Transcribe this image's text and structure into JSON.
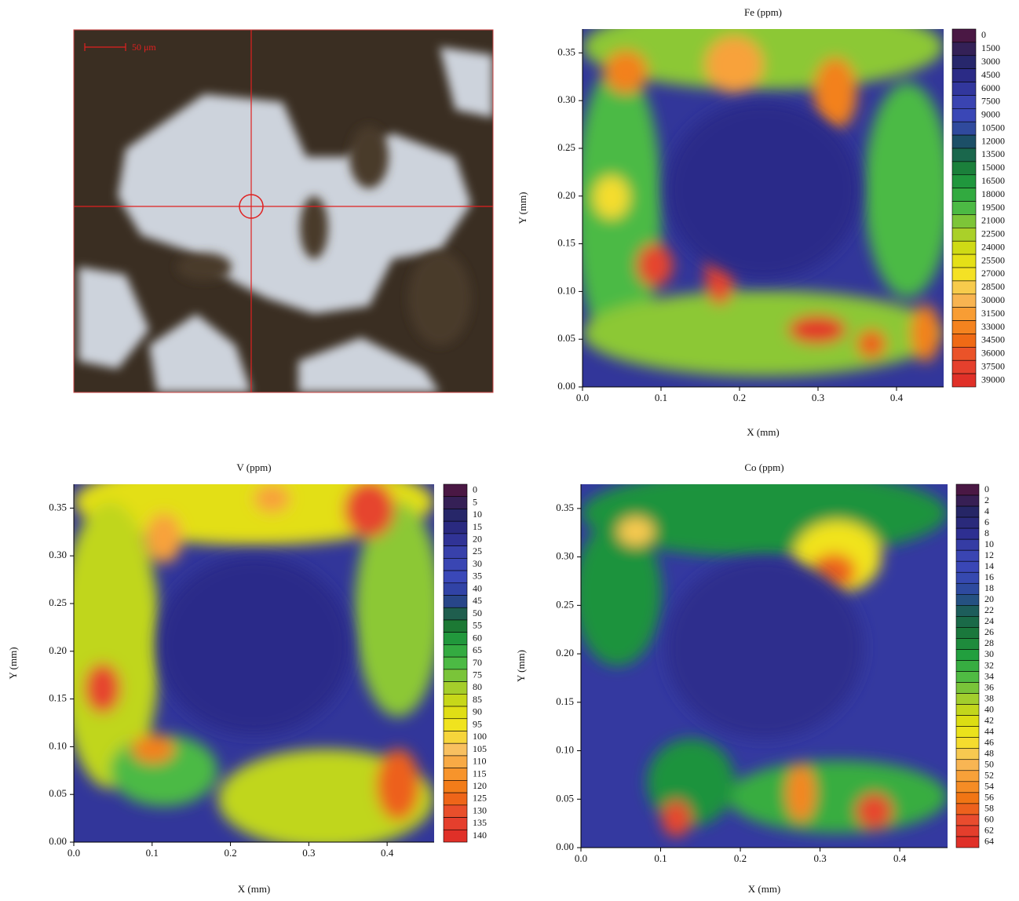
{
  "micrograph": {
    "scale_label": "50 μm"
  },
  "chart_data": [
    {
      "type": "contour",
      "title": "Fe (ppm)",
      "x_label": "X (mm)",
      "y_label": "Y (mm)",
      "xlim": [
        0,
        0.46
      ],
      "ylim": [
        0,
        0.375
      ],
      "xticks": [
        {
          "value": 0,
          "label": "0.0"
        },
        0.1,
        0.2,
        0.3,
        0.4
      ],
      "yticks": [
        {
          "value": 0,
          "label": "0.00"
        },
        0.05,
        {
          "value": 0.1,
          "label": "0.10"
        },
        0.15,
        {
          "value": 0.2,
          "label": "0.20"
        },
        0.25,
        {
          "value": 0.3,
          "label": "0.30"
        },
        0.35
      ],
      "levels": [
        0,
        1500,
        3000,
        4500,
        6000,
        7500,
        9000,
        10500,
        12000,
        13500,
        15000,
        16500,
        18000,
        19500,
        21000,
        22500,
        24000,
        25500,
        27000,
        28500,
        30000,
        31500,
        33000,
        34500,
        36000,
        37500,
        39000
      ],
      "colormap": [
        "#4a1844",
        "#262663",
        "#2c2c8c",
        "#3a44b0",
        "#3a48b8",
        "#1a5060",
        "#1a7a3a",
        "#22a03e",
        "#4cba44",
        "#9ccc30",
        "#d8dc10",
        "#f4e420",
        "#f8c060",
        "#f89a30",
        "#f07010",
        "#e84a30",
        "#e03028"
      ]
    },
    {
      "type": "contour",
      "title": "V (ppm)",
      "x_label": "X (mm)",
      "y_label": "Y (mm)",
      "xlim": [
        0,
        0.46
      ],
      "ylim": [
        0,
        0.375
      ],
      "xticks": [
        {
          "value": 0,
          "label": "0.0"
        },
        0.1,
        0.2,
        0.3,
        0.4
      ],
      "yticks": [
        {
          "value": 0,
          "label": "0.00"
        },
        0.05,
        {
          "value": 0.1,
          "label": "0.10"
        },
        0.15,
        {
          "value": 0.2,
          "label": "0.20"
        },
        0.25,
        {
          "value": 0.3,
          "label": "0.30"
        },
        0.35
      ],
      "levels": [
        0,
        5,
        10,
        15,
        20,
        25,
        30,
        35,
        40,
        45,
        50,
        55,
        60,
        65,
        70,
        75,
        80,
        85,
        90,
        95,
        100,
        105,
        110,
        115,
        120,
        125,
        130,
        135,
        140
      ],
      "colormap": [
        "#4a1844",
        "#262663",
        "#2c2c8c",
        "#3a44b0",
        "#3a48b8",
        "#2a4098",
        "#1a6a30",
        "#22a03e",
        "#4cba44",
        "#9ccc30",
        "#d8dc10",
        "#f4e420",
        "#f8c060",
        "#f89a30",
        "#f07010",
        "#e84a30",
        "#e03028"
      ]
    },
    {
      "type": "contour",
      "title": "Co (ppm)",
      "x_label": "X (mm)",
      "y_label": "Y (mm)",
      "xlim": [
        0,
        0.46
      ],
      "ylim": [
        0,
        0.375
      ],
      "xticks": [
        {
          "value": 0,
          "label": "0.0"
        },
        0.1,
        0.2,
        0.3,
        0.4
      ],
      "yticks": [
        {
          "value": 0,
          "label": "0.00"
        },
        0.05,
        {
          "value": 0.1,
          "label": "0.10"
        },
        0.15,
        {
          "value": 0.2,
          "label": "0.20"
        },
        0.25,
        {
          "value": 0.3,
          "label": "0.30"
        },
        0.35
      ],
      "levels": [
        0,
        2,
        4,
        6,
        8,
        10,
        12,
        14,
        16,
        18,
        20,
        22,
        24,
        26,
        28,
        30,
        32,
        34,
        36,
        38,
        40,
        42,
        44,
        46,
        48,
        50,
        52,
        54,
        56,
        58,
        60,
        62,
        64
      ],
      "colormap": [
        "#4a1844",
        "#262663",
        "#2c2c8c",
        "#3a44b0",
        "#3a48b8",
        "#2a4a98",
        "#1a6050",
        "#1a7a3a",
        "#22a03e",
        "#4cba44",
        "#9ccc30",
        "#d8dc10",
        "#f4e420",
        "#f8c060",
        "#f89a30",
        "#f07010",
        "#e84a30",
        "#e03028"
      ]
    }
  ]
}
